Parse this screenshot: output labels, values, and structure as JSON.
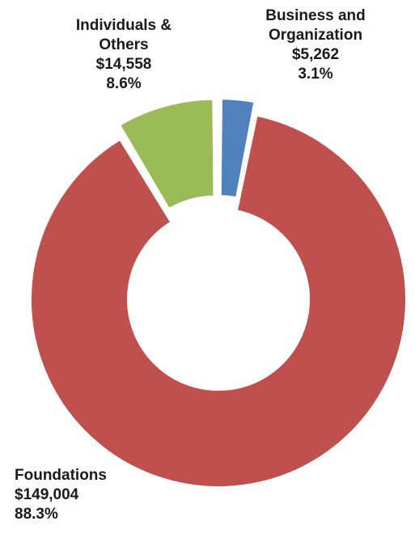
{
  "chart_data": {
    "type": "pie",
    "style": "donut",
    "slices": [
      {
        "label": "Business and Organization",
        "value": 5262,
        "value_text": "$5,262",
        "percent_text": "3.1%",
        "color": "#4f81bd",
        "exploded": true
      },
      {
        "label": "Foundations",
        "value": 149004,
        "value_text": "$149,004",
        "percent_text": "88.3%",
        "color": "#c0504d",
        "exploded": false
      },
      {
        "label": "Individuals & Others",
        "value": 14558,
        "value_text": "$14,558",
        "percent_text": "8.6%",
        "color": "#9bbb59",
        "exploded": true
      }
    ],
    "labels": {
      "business": {
        "line1": "Business and",
        "line2": "Organization",
        "value": "$5,262",
        "percent": "3.1%"
      },
      "individuals": {
        "line1": "Individuals &",
        "line2": "Others",
        "value": "$14,558",
        "percent": "8.6%"
      },
      "foundations": {
        "line1": "Foundations",
        "value": "$149,004",
        "percent": "88.3%"
      }
    },
    "legend": "none"
  }
}
